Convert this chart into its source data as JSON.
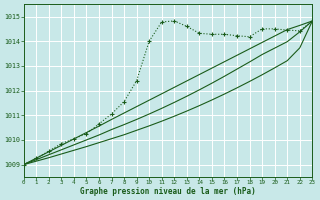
{
  "background_color": "#c8e8e8",
  "grid_color": "#b0d0d0",
  "line_color": "#1a5c1a",
  "text_color": "#1a5c1a",
  "xlabel": "Graphe pression niveau de la mer (hPa)",
  "xlim": [
    0,
    23
  ],
  "ylim": [
    1008.5,
    1015.5
  ],
  "yticks": [
    1009,
    1010,
    1011,
    1012,
    1013,
    1014,
    1015
  ],
  "xticks": [
    0,
    1,
    2,
    3,
    4,
    5,
    6,
    7,
    8,
    9,
    10,
    11,
    12,
    13,
    14,
    15,
    16,
    17,
    18,
    19,
    20,
    21,
    22,
    23
  ],
  "main_y": [
    1009.0,
    1009.25,
    1009.55,
    1009.85,
    1010.05,
    1010.25,
    1010.65,
    1011.05,
    1011.55,
    1012.4,
    1014.0,
    1014.78,
    1014.82,
    1014.6,
    1014.32,
    1014.28,
    1014.28,
    1014.22,
    1014.18,
    1014.5,
    1014.5,
    1014.45,
    1014.42,
    1014.82
  ],
  "line1_y": [
    1009.0,
    1009.26,
    1009.52,
    1009.78,
    1010.04,
    1010.3,
    1010.56,
    1010.83,
    1011.09,
    1011.35,
    1011.61,
    1011.87,
    1012.13,
    1012.39,
    1012.65,
    1012.91,
    1013.17,
    1013.43,
    1013.69,
    1013.95,
    1014.21,
    1014.47,
    1014.64,
    1014.82
  ],
  "line2_y": [
    1009.0,
    1009.2,
    1009.4,
    1009.6,
    1009.8,
    1010.0,
    1010.2,
    1010.42,
    1010.62,
    1010.83,
    1011.05,
    1011.28,
    1011.52,
    1011.77,
    1012.03,
    1012.3,
    1012.58,
    1012.87,
    1013.16,
    1013.46,
    1013.72,
    1013.98,
    1014.38,
    1014.82
  ],
  "line3_y": [
    1009.0,
    1009.14,
    1009.28,
    1009.43,
    1009.58,
    1009.73,
    1009.89,
    1010.05,
    1010.21,
    1010.39,
    1010.57,
    1010.76,
    1010.96,
    1011.17,
    1011.39,
    1011.62,
    1011.86,
    1012.11,
    1012.37,
    1012.64,
    1012.92,
    1013.21,
    1013.73,
    1014.82
  ]
}
